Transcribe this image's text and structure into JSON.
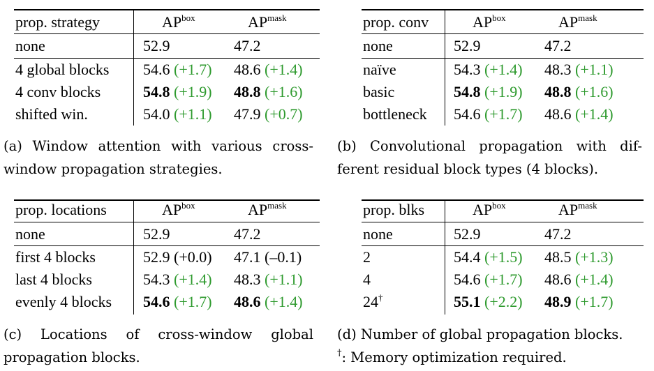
{
  "tables": [
    {
      "id": "a",
      "header": [
        "prop. strategy",
        "AP",
        "box",
        "AP",
        "mask"
      ],
      "baseline": {
        "label": "none",
        "box": "52.9",
        "mask": "47.2"
      },
      "rows": [
        {
          "label": "4 global blocks",
          "box": "54.6",
          "box_gain": "(+1.7)",
          "mask": "48.6",
          "mask_gain": "(+1.4)"
        },
        {
          "label": "4 conv blocks",
          "box": "54.8",
          "box_gain": "(+1.9)",
          "mask": "48.8",
          "mask_gain": "(+1.6)"
        },
        {
          "label": "shifted win.",
          "box": "54.0",
          "box_gain": "(+1.1)",
          "mask": "47.9",
          "mask_gain": "(+0.7)"
        }
      ],
      "caption_lines": [
        "(a) Window attention with various cross-",
        "window propagation strategies."
      ]
    },
    {
      "id": "b",
      "header": [
        "prop. conv",
        "AP",
        "box",
        "AP",
        "mask"
      ],
      "baseline": {
        "label": "none",
        "box": "52.9",
        "mask": "47.2"
      },
      "rows": [
        {
          "label": "naïve",
          "box": "54.3",
          "box_gain": "(+1.4)",
          "mask": "48.3",
          "mask_gain": "(+1.1)"
        },
        {
          "label": "basic",
          "box": "54.8",
          "box_gain": "(+1.9)",
          "mask": "48.8",
          "mask_gain": "(+1.6)"
        },
        {
          "label": "bottleneck",
          "box": "54.6",
          "box_gain": "(+1.7)",
          "mask": "48.6",
          "mask_gain": "(+1.4)"
        }
      ],
      "caption_lines": [
        "(b) Convolutional propagation with dif-",
        "ferent residual block types (4 blocks)."
      ]
    },
    {
      "id": "c",
      "header": [
        "prop. locations",
        "AP",
        "box",
        "AP",
        "mask"
      ],
      "baseline": {
        "label": "none",
        "box": "52.9",
        "mask": "47.2"
      },
      "rows": [
        {
          "label": "first 4 blocks",
          "box": "52.9",
          "box_gain": "(+0.0)",
          "mask": "47.1",
          "mask_gain": "(–0.1)"
        },
        {
          "label": "last 4 blocks",
          "box": "54.3",
          "box_gain": "(+1.4)",
          "mask": "48.3",
          "mask_gain": "(+1.1)"
        },
        {
          "label": "evenly 4 blocks",
          "box": "54.6",
          "box_gain": "(+1.7)",
          "mask": "48.6",
          "mask_gain": "(+1.4)"
        }
      ],
      "caption_lines": [
        "(c) Locations of cross-window global",
        "propagation blocks."
      ]
    },
    {
      "id": "d",
      "header": [
        "prop. blks",
        "AP",
        "box",
        "AP",
        "mask"
      ],
      "baseline": {
        "label": "none",
        "box": "52.9",
        "mask": "47.2"
      },
      "rows": [
        {
          "label": "2",
          "box": "54.4",
          "box_gain": "(+1.5)",
          "mask": "48.5",
          "mask_gain": "(+1.3)"
        },
        {
          "label": "4",
          "box": "54.6",
          "box_gain": "(+1.7)",
          "mask": "48.6",
          "mask_gain": "(+1.4)"
        },
        {
          "label": "24",
          "label_sup": "†",
          "box": "55.1",
          "box_gain": "(+2.2)",
          "mask": "48.9",
          "mask_gain": "(+1.7)"
        }
      ],
      "caption_lines": [
        "(d) Number of global propagation blocks.",
        ": Memory optimization required."
      ],
      "caption_dagger": "†"
    }
  ],
  "colors": {
    "gain": "#2e9a2e",
    "text": "#000000"
  }
}
